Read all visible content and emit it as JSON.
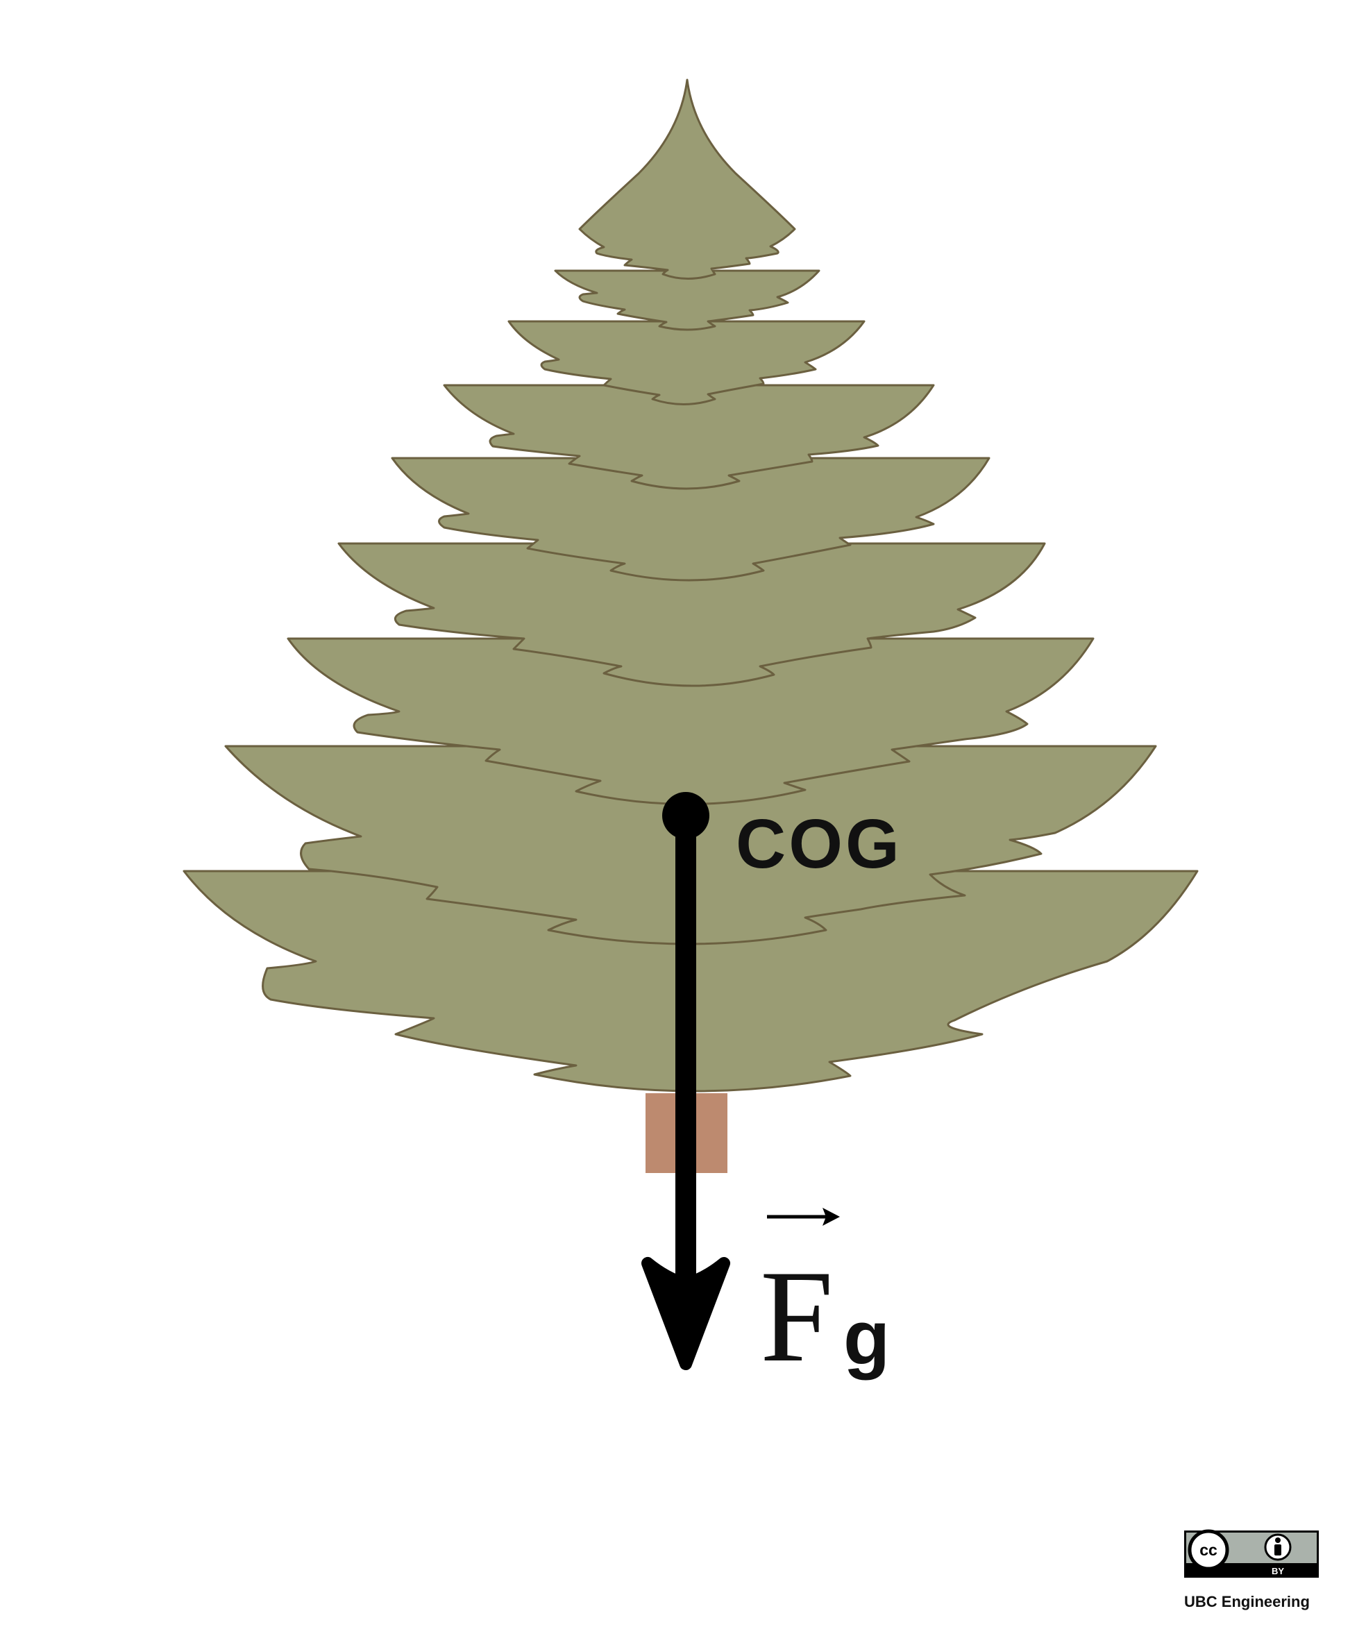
{
  "diagram": {
    "cog_label": "COG",
    "force_symbol": "F",
    "force_subscript": "g",
    "colors": {
      "foliage": "#9a9c74",
      "foliage_outline": "#6b6040",
      "trunk": "#bd8a6f",
      "arrow": "#000000"
    }
  },
  "license": {
    "badge_cc": "cc",
    "badge_by": "BY",
    "credit": "UBC Engineering"
  }
}
